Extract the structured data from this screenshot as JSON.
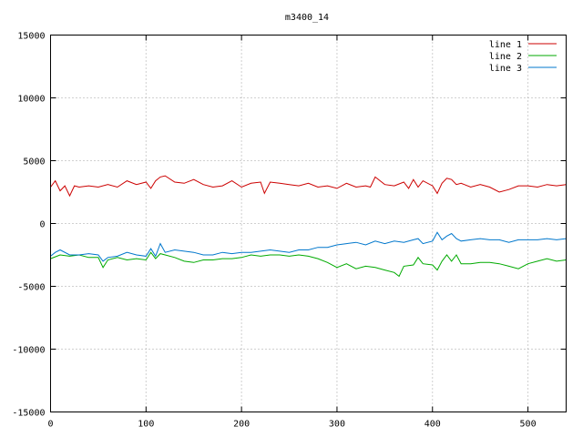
{
  "chart_data": {
    "type": "line",
    "title": "m3400_14",
    "xlabel": "",
    "ylabel": "",
    "xlim": [
      0,
      540
    ],
    "ylim": [
      -15000,
      15000
    ],
    "x_ticks": [
      0,
      100,
      200,
      300,
      400,
      500
    ],
    "y_ticks": [
      -15000,
      -10000,
      -5000,
      0,
      5000,
      10000,
      15000
    ],
    "grid": true,
    "legend_position": "top-right",
    "series": [
      {
        "name": "line 1",
        "color": "#cc0000",
        "x": [
          0,
          5,
          10,
          15,
          20,
          25,
          30,
          40,
          50,
          60,
          70,
          80,
          90,
          100,
          105,
          110,
          115,
          120,
          130,
          140,
          150,
          160,
          170,
          180,
          190,
          200,
          210,
          220,
          224,
          230,
          240,
          250,
          260,
          270,
          280,
          290,
          300,
          310,
          320,
          330,
          335,
          340,
          350,
          360,
          370,
          375,
          380,
          385,
          390,
          400,
          405,
          410,
          415,
          420,
          425,
          430,
          440,
          450,
          460,
          470,
          480,
          490,
          500,
          510,
          520,
          530,
          540
        ],
        "y": [
          2900,
          3400,
          2600,
          3000,
          2200,
          3000,
          2900,
          3000,
          2900,
          3100,
          2900,
          3400,
          3100,
          3300,
          2800,
          3400,
          3700,
          3800,
          3300,
          3200,
          3500,
          3100,
          2900,
          3000,
          3400,
          2900,
          3200,
          3300,
          2400,
          3300,
          3200,
          3100,
          3000,
          3200,
          2900,
          3000,
          2800,
          3200,
          2900,
          3000,
          2900,
          3700,
          3100,
          3000,
          3300,
          2800,
          3500,
          2900,
          3400,
          3000,
          2400,
          3200,
          3600,
          3500,
          3100,
          3200,
          2900,
          3100,
          2900,
          2500,
          2700,
          3000,
          3000,
          2900,
          3100,
          3000,
          3100
        ]
      },
      {
        "name": "line 2",
        "color": "#00aa00",
        "x": [
          0,
          10,
          20,
          30,
          40,
          50,
          55,
          60,
          70,
          80,
          90,
          100,
          105,
          110,
          115,
          120,
          130,
          140,
          150,
          160,
          170,
          180,
          190,
          200,
          210,
          220,
          230,
          240,
          250,
          260,
          270,
          280,
          290,
          300,
          310,
          320,
          330,
          340,
          350,
          360,
          365,
          370,
          380,
          385,
          390,
          400,
          405,
          410,
          415,
          420,
          425,
          430,
          440,
          450,
          460,
          470,
          480,
          490,
          500,
          510,
          520,
          530,
          540
        ],
        "y": [
          -2800,
          -2500,
          -2600,
          -2500,
          -2700,
          -2700,
          -3500,
          -2900,
          -2700,
          -2900,
          -2800,
          -2900,
          -2300,
          -2800,
          -2400,
          -2500,
          -2700,
          -3000,
          -3100,
          -2900,
          -2900,
          -2800,
          -2800,
          -2700,
          -2500,
          -2600,
          -2500,
          -2500,
          -2600,
          -2500,
          -2600,
          -2800,
          -3100,
          -3500,
          -3200,
          -3600,
          -3400,
          -3500,
          -3700,
          -3900,
          -4200,
          -3400,
          -3300,
          -2700,
          -3200,
          -3300,
          -3700,
          -3000,
          -2500,
          -3000,
          -2500,
          -3200,
          -3200,
          -3100,
          -3100,
          -3200,
          -3400,
          -3600,
          -3200,
          -3000,
          -2800,
          -3000,
          -2900
        ]
      },
      {
        "name": "line 3",
        "color": "#0077cc",
        "x": [
          0,
          5,
          10,
          20,
          30,
          40,
          50,
          55,
          60,
          70,
          80,
          90,
          100,
          105,
          110,
          115,
          120,
          130,
          140,
          150,
          160,
          170,
          180,
          190,
          200,
          210,
          220,
          230,
          240,
          250,
          260,
          270,
          280,
          290,
          300,
          310,
          320,
          330,
          340,
          350,
          360,
          370,
          380,
          385,
          390,
          400,
          405,
          410,
          415,
          420,
          425,
          430,
          440,
          450,
          460,
          470,
          480,
          490,
          500,
          510,
          520,
          530,
          540
        ],
        "y": [
          -2600,
          -2300,
          -2100,
          -2500,
          -2500,
          -2400,
          -2500,
          -3000,
          -2700,
          -2600,
          -2300,
          -2500,
          -2600,
          -2000,
          -2600,
          -1600,
          -2300,
          -2100,
          -2200,
          -2300,
          -2500,
          -2500,
          -2300,
          -2400,
          -2300,
          -2300,
          -2200,
          -2100,
          -2200,
          -2300,
          -2100,
          -2100,
          -1900,
          -1900,
          -1700,
          -1600,
          -1500,
          -1700,
          -1400,
          -1600,
          -1400,
          -1500,
          -1300,
          -1200,
          -1600,
          -1400,
          -700,
          -1300,
          -1000,
          -800,
          -1200,
          -1400,
          -1300,
          -1200,
          -1300,
          -1300,
          -1500,
          -1300,
          -1300,
          -1300,
          -1200,
          -1300,
          -1200
        ]
      }
    ]
  }
}
